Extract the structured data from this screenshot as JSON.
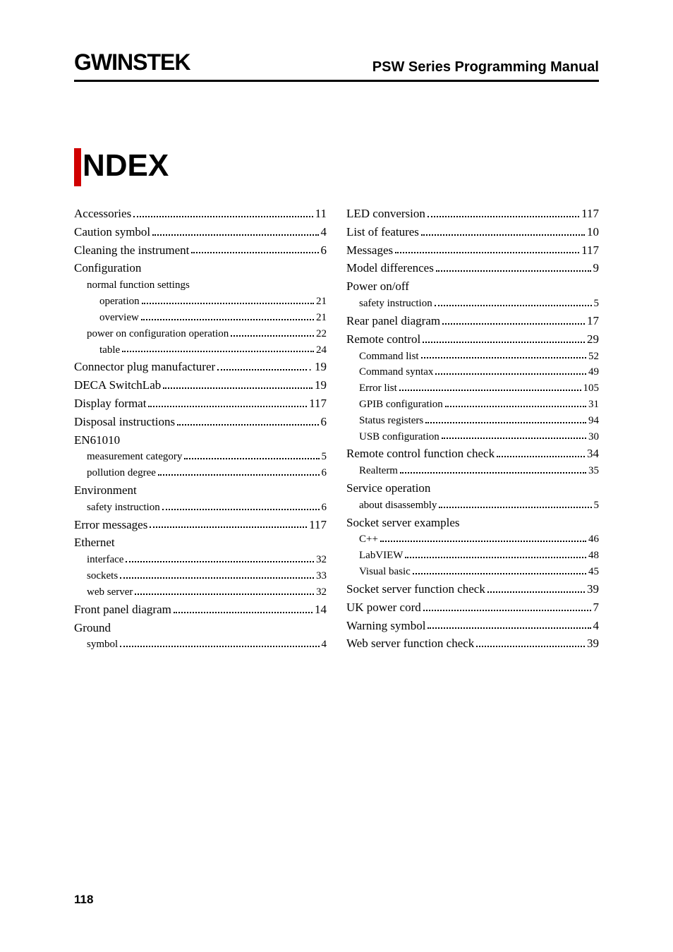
{
  "header": {
    "logo_text": "GWINSTEK",
    "manual_title": "PSW Series Programming Manual"
  },
  "title": "NDEX",
  "footer_page": "118",
  "left_col": [
    {
      "type": "entry",
      "level": 0,
      "label": "Accessories",
      "page": "11"
    },
    {
      "type": "entry",
      "level": 0,
      "label": "Caution symbol",
      "page": "4"
    },
    {
      "type": "entry",
      "level": 0,
      "label": "Cleaning the instrument",
      "page": "6"
    },
    {
      "type": "group",
      "level": 0,
      "label": "Configuration"
    },
    {
      "type": "group",
      "level": 1,
      "label": "normal function settings"
    },
    {
      "type": "entry",
      "level": 2,
      "label": "operation",
      "page": "21"
    },
    {
      "type": "entry",
      "level": 2,
      "label": "overview",
      "page": "21"
    },
    {
      "type": "entry",
      "level": 1,
      "label": "power on configuration operation",
      "page": "22"
    },
    {
      "type": "entry",
      "level": 2,
      "label": "table",
      "page": "24"
    },
    {
      "type": "entry",
      "level": 0,
      "label": "Connector plug manufacturer",
      "page": ". 19"
    },
    {
      "type": "entry",
      "level": 0,
      "label": "DECA SwitchLab",
      "page": "19"
    },
    {
      "type": "entry",
      "level": 0,
      "label": "Display format",
      "page": "117"
    },
    {
      "type": "entry",
      "level": 0,
      "label": "Disposal instructions",
      "page": "6"
    },
    {
      "type": "group",
      "level": 0,
      "label": "EN61010"
    },
    {
      "type": "entry",
      "level": 1,
      "label": "measurement category",
      "page": "5"
    },
    {
      "type": "entry",
      "level": 1,
      "label": "pollution degree",
      "page": "6"
    },
    {
      "type": "group",
      "level": 0,
      "label": "Environment"
    },
    {
      "type": "entry",
      "level": 1,
      "label": "safety instruction",
      "page": "6"
    },
    {
      "type": "entry",
      "level": 0,
      "label": "Error messages",
      "page": "117"
    },
    {
      "type": "group",
      "level": 0,
      "label": "Ethernet"
    },
    {
      "type": "entry",
      "level": 1,
      "label": "interface",
      "page": "32"
    },
    {
      "type": "entry",
      "level": 1,
      "label": "sockets",
      "page": "33"
    },
    {
      "type": "entry",
      "level": 1,
      "label": "web server",
      "page": "32"
    },
    {
      "type": "entry",
      "level": 0,
      "label": "Front panel diagram",
      "page": "14"
    },
    {
      "type": "group",
      "level": 0,
      "label": "Ground"
    },
    {
      "type": "entry",
      "level": 1,
      "label": "symbol",
      "page": "4"
    }
  ],
  "right_col": [
    {
      "type": "entry",
      "level": 0,
      "label": "LED conversion",
      "page": "117"
    },
    {
      "type": "entry",
      "level": 0,
      "label": "List of features",
      "page": "10"
    },
    {
      "type": "entry",
      "level": 0,
      "label": "Messages",
      "page": "117"
    },
    {
      "type": "entry",
      "level": 0,
      "label": "Model differences",
      "page": "9"
    },
    {
      "type": "group",
      "level": 0,
      "label": "Power on/off"
    },
    {
      "type": "entry",
      "level": 1,
      "label": "safety instruction",
      "page": "5"
    },
    {
      "type": "entry",
      "level": 0,
      "label": "Rear panel diagram",
      "page": "17"
    },
    {
      "type": "entry",
      "level": 0,
      "label": "Remote control",
      "page": "29"
    },
    {
      "type": "entry",
      "level": 1,
      "label": "Command list",
      "page": "52"
    },
    {
      "type": "entry",
      "level": 1,
      "label": "Command syntax",
      "page": "49"
    },
    {
      "type": "entry",
      "level": 1,
      "label": "Error list",
      "page": "105"
    },
    {
      "type": "entry",
      "level": 1,
      "label": "GPIB configuration",
      "page": "31"
    },
    {
      "type": "entry",
      "level": 1,
      "label": "Status registers",
      "page": "94"
    },
    {
      "type": "entry",
      "level": 1,
      "label": "USB configuration",
      "page": "30"
    },
    {
      "type": "entry",
      "level": 0,
      "label": "Remote control function check",
      "page": "34"
    },
    {
      "type": "entry",
      "level": 1,
      "label": "Realterm",
      "page": "35"
    },
    {
      "type": "group",
      "level": 0,
      "label": "Service operation"
    },
    {
      "type": "entry",
      "level": 1,
      "label": "about disassembly",
      "page": "5"
    },
    {
      "type": "group",
      "level": 0,
      "label": "Socket server examples"
    },
    {
      "type": "entry",
      "level": 1,
      "label": "C++",
      "page": "46"
    },
    {
      "type": "entry",
      "level": 1,
      "label": "LabVIEW",
      "page": "48"
    },
    {
      "type": "entry",
      "level": 1,
      "label": "Visual basic",
      "page": "45"
    },
    {
      "type": "entry",
      "level": 0,
      "label": "Socket server function check",
      "page": "39"
    },
    {
      "type": "entry",
      "level": 0,
      "label": "UK power cord",
      "page": "7"
    },
    {
      "type": "entry",
      "level": 0,
      "label": "Warning symbol",
      "page": "4"
    },
    {
      "type": "entry",
      "level": 0,
      "label": "Web server function check",
      "page": "39"
    }
  ]
}
